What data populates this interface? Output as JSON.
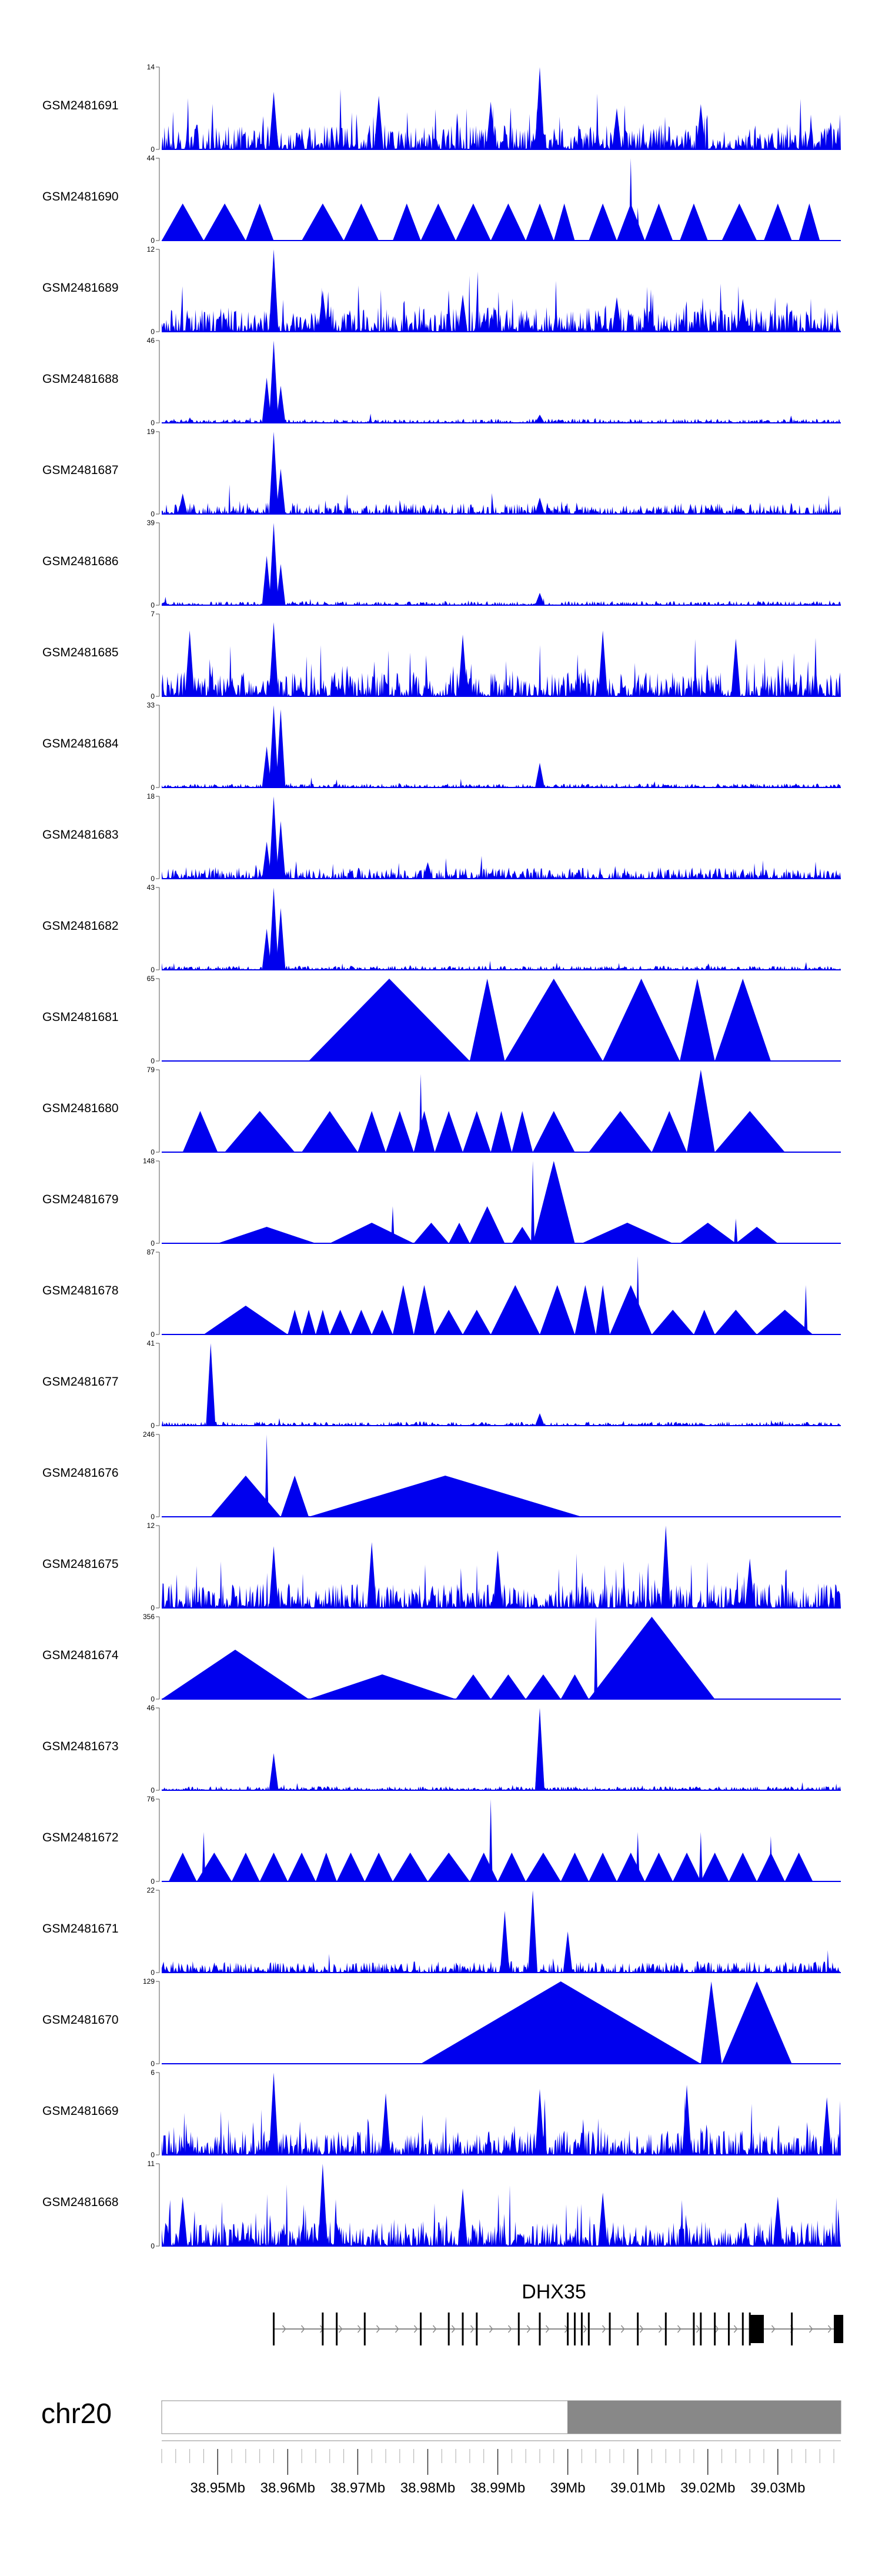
{
  "chart_data": {
    "type": "area",
    "title": "",
    "xlabel": "",
    "ylabel": "",
    "color": "#0000EE",
    "x_range_mb": [
      38.942,
      39.039
    ],
    "tracks": [
      {
        "name": "GSM2481691",
        "ymax": "14",
        "ymin": "0",
        "pattern": "dense",
        "peaks": [
          [
            38.958,
            0.7
          ],
          [
            38.973,
            0.65
          ],
          [
            38.989,
            0.58
          ],
          [
            38.996,
            1.0
          ],
          [
            39.007,
            0.5
          ],
          [
            39.019,
            0.55
          ]
        ],
        "segments": []
      },
      {
        "name": "GSM2481690",
        "ymax": "44",
        "ymin": "0",
        "pattern": "triangles",
        "peaks": [
          [
            39.009,
            1.0
          ],
          [
            39.01,
            0.4
          ]
        ],
        "segments": [
          [
            38.942,
            38.948
          ],
          [
            38.948,
            38.954
          ],
          [
            38.954,
            38.958
          ],
          [
            38.962,
            38.968
          ],
          [
            38.968,
            38.973
          ],
          [
            38.975,
            38.979
          ],
          [
            38.979,
            38.984
          ],
          [
            38.984,
            38.989
          ],
          [
            38.989,
            38.994
          ],
          [
            38.994,
            38.998
          ],
          [
            38.998,
            39.001
          ],
          [
            39.003,
            39.007
          ],
          [
            39.007,
            39.011
          ],
          [
            39.011,
            39.015
          ],
          [
            39.016,
            39.02
          ],
          [
            39.022,
            39.027
          ],
          [
            39.028,
            39.032
          ],
          [
            39.033,
            39.036
          ]
        ]
      },
      {
        "name": "GSM2481689",
        "ymax": "12",
        "ymin": "0",
        "pattern": "dense",
        "peaks": [
          [
            38.958,
            1.0
          ],
          [
            38.965,
            0.5
          ],
          [
            38.985,
            0.45
          ],
          [
            39.007,
            0.42
          ],
          [
            39.025,
            0.4
          ]
        ],
        "segments": []
      },
      {
        "name": "GSM2481688",
        "ymax": "46",
        "ymin": "0",
        "pattern": "sparse",
        "peaks": [
          [
            38.958,
            1.0
          ],
          [
            38.957,
            0.55
          ],
          [
            38.959,
            0.45
          ],
          [
            38.996,
            0.1
          ]
        ],
        "segments": []
      },
      {
        "name": "GSM2481687",
        "ymax": "19",
        "ymin": "0",
        "pattern": "medium",
        "peaks": [
          [
            38.958,
            1.0
          ],
          [
            38.959,
            0.55
          ],
          [
            38.945,
            0.25
          ],
          [
            38.996,
            0.2
          ]
        ],
        "segments": []
      },
      {
        "name": "GSM2481686",
        "ymax": "39",
        "ymin": "0",
        "pattern": "sparse",
        "peaks": [
          [
            38.958,
            1.0
          ],
          [
            38.957,
            0.6
          ],
          [
            38.959,
            0.5
          ],
          [
            38.996,
            0.15
          ]
        ],
        "segments": []
      },
      {
        "name": "GSM2481685",
        "ymax": "7",
        "ymin": "0",
        "pattern": "dense",
        "peaks": [
          [
            38.946,
            0.8
          ],
          [
            38.958,
            0.9
          ],
          [
            38.985,
            0.75
          ],
          [
            39.005,
            0.8
          ],
          [
            39.024,
            0.7
          ]
        ],
        "segments": []
      },
      {
        "name": "GSM2481684",
        "ymax": "33",
        "ymin": "0",
        "pattern": "sparse",
        "peaks": [
          [
            38.958,
            1.0
          ],
          [
            38.959,
            0.95
          ],
          [
            38.957,
            0.5
          ],
          [
            38.996,
            0.3
          ]
        ],
        "segments": []
      },
      {
        "name": "GSM2481683",
        "ymax": "18",
        "ymin": "0",
        "pattern": "medium",
        "peaks": [
          [
            38.958,
            1.0
          ],
          [
            38.959,
            0.7
          ],
          [
            38.957,
            0.45
          ],
          [
            38.98,
            0.2
          ]
        ],
        "segments": []
      },
      {
        "name": "GSM2481682",
        "ymax": "43",
        "ymin": "0",
        "pattern": "sparse",
        "peaks": [
          [
            38.958,
            1.0
          ],
          [
            38.959,
            0.75
          ],
          [
            38.957,
            0.5
          ]
        ],
        "segments": []
      },
      {
        "name": "GSM2481681",
        "ymax": "65",
        "ymin": "0",
        "pattern": "triangles",
        "peaks": [],
        "segments": [
          [
            38.963,
            38.986,
            1.0
          ],
          [
            38.986,
            38.991,
            1.0
          ],
          [
            38.991,
            39.005,
            1.0
          ],
          [
            39.005,
            39.016,
            1.0
          ],
          [
            39.016,
            39.021,
            1.0
          ],
          [
            39.021,
            39.029,
            1.0
          ]
        ]
      },
      {
        "name": "GSM2481680",
        "ymax": "79",
        "ymin": "0",
        "pattern": "triangles",
        "peaks": [
          [
            38.979,
            0.95
          ],
          [
            39.019,
            1.0
          ]
        ],
        "segments": [
          [
            38.945,
            38.95,
            0.5
          ],
          [
            38.951,
            38.961,
            0.5
          ],
          [
            38.962,
            38.97,
            0.5
          ],
          [
            38.97,
            38.974,
            0.5
          ],
          [
            38.974,
            38.978,
            0.5
          ],
          [
            38.978,
            38.981,
            0.5
          ],
          [
            38.981,
            38.985,
            0.5
          ],
          [
            38.985,
            38.989,
            0.5
          ],
          [
            38.989,
            38.992,
            0.5
          ],
          [
            38.992,
            38.995,
            0.5
          ],
          [
            38.995,
            39.001,
            0.5
          ],
          [
            39.003,
            39.012,
            0.5
          ],
          [
            39.012,
            39.017,
            0.5
          ],
          [
            39.017,
            39.021,
            1.0
          ],
          [
            39.021,
            39.031,
            0.5
          ]
        ]
      },
      {
        "name": "GSM2481679",
        "ymax": "148",
        "ymin": "0",
        "pattern": "triangles",
        "peaks": [
          [
            38.975,
            0.45
          ],
          [
            38.995,
            1.0
          ],
          [
            39.024,
            0.3
          ]
        ],
        "segments": [
          [
            38.95,
            38.964,
            0.2
          ],
          [
            38.966,
            38.978,
            0.25
          ],
          [
            38.978,
            38.983,
            0.25
          ],
          [
            38.983,
            38.986,
            0.25
          ],
          [
            38.986,
            38.991,
            0.45
          ],
          [
            38.992,
            38.995,
            0.2
          ],
          [
            38.995,
            39.001,
            1.0
          ],
          [
            39.002,
            39.015,
            0.25
          ],
          [
            39.016,
            39.024,
            0.25
          ],
          [
            39.024,
            39.03,
            0.2
          ]
        ]
      },
      {
        "name": "GSM2481678",
        "ymax": "87",
        "ymin": "0",
        "pattern": "triangles",
        "peaks": [
          [
            39.01,
            0.95
          ],
          [
            39.034,
            0.6
          ]
        ],
        "segments": [
          [
            38.948,
            38.96,
            0.35
          ],
          [
            38.96,
            38.962,
            0.3
          ],
          [
            38.962,
            38.964,
            0.3
          ],
          [
            38.964,
            38.966,
            0.3
          ],
          [
            38.966,
            38.969,
            0.3
          ],
          [
            38.969,
            38.972,
            0.3
          ],
          [
            38.972,
            38.975,
            0.3
          ],
          [
            38.975,
            38.978,
            0.6
          ],
          [
            38.978,
            38.981,
            0.6
          ],
          [
            38.981,
            38.985,
            0.3
          ],
          [
            38.985,
            38.989,
            0.3
          ],
          [
            38.989,
            38.996,
            0.6
          ],
          [
            38.996,
            39.001,
            0.6
          ],
          [
            39.001,
            39.004,
            0.6
          ],
          [
            39.004,
            39.006,
            0.6
          ],
          [
            39.006,
            39.012,
            0.6
          ],
          [
            39.012,
            39.018,
            0.3
          ],
          [
            39.018,
            39.021,
            0.3
          ],
          [
            39.021,
            39.027,
            0.3
          ],
          [
            39.027,
            39.035,
            0.3
          ]
        ]
      },
      {
        "name": "GSM2481677",
        "ymax": "41",
        "ymin": "0",
        "pattern": "sparse",
        "peaks": [
          [
            38.949,
            1.0
          ],
          [
            38.996,
            0.15
          ]
        ],
        "segments": []
      },
      {
        "name": "GSM2481676",
        "ymax": "246",
        "ymin": "0",
        "pattern": "triangles",
        "peaks": [
          [
            38.957,
            1.0
          ]
        ],
        "segments": [
          [
            38.949,
            38.959,
            0.5
          ],
          [
            38.959,
            38.963,
            0.5
          ],
          [
            38.963,
            39.002,
            0.5
          ]
        ]
      },
      {
        "name": "GSM2481675",
        "ymax": "12",
        "ymin": "0",
        "pattern": "dense",
        "peaks": [
          [
            38.958,
            0.75
          ],
          [
            38.972,
            0.8
          ],
          [
            38.99,
            0.7
          ],
          [
            39.014,
            1.0
          ],
          [
            39.026,
            0.6
          ]
        ],
        "segments": []
      },
      {
        "name": "GSM2481674",
        "ymax": "356",
        "ymin": "0",
        "pattern": "triangles",
        "peaks": [
          [
            39.004,
            1.0
          ]
        ],
        "segments": [
          [
            38.942,
            38.963,
            0.6
          ],
          [
            38.963,
            38.984,
            0.3
          ],
          [
            38.984,
            38.989,
            0.3
          ],
          [
            38.989,
            38.994,
            0.3
          ],
          [
            38.994,
            38.999,
            0.3
          ],
          [
            38.999,
            39.003,
            0.3
          ],
          [
            39.003,
            39.021,
            1.0
          ]
        ]
      },
      {
        "name": "GSM2481673",
        "ymax": "46",
        "ymin": "0",
        "pattern": "sparse",
        "peaks": [
          [
            38.958,
            0.45
          ],
          [
            38.996,
            1.0
          ],
          [
            38.996,
            0.8
          ]
        ],
        "segments": []
      },
      {
        "name": "GSM2481672",
        "ymax": "76",
        "ymin": "0",
        "pattern": "triangles",
        "peaks": [
          [
            38.948,
            0.6
          ],
          [
            38.989,
            1.0
          ],
          [
            39.01,
            0.6
          ],
          [
            39.019,
            0.6
          ],
          [
            39.029,
            0.55
          ]
        ],
        "segments": [
          [
            38.943,
            38.947,
            0.35
          ],
          [
            38.947,
            38.952,
            0.35
          ],
          [
            38.952,
            38.956,
            0.35
          ],
          [
            38.956,
            38.96,
            0.35
          ],
          [
            38.96,
            38.964,
            0.35
          ],
          [
            38.964,
            38.967,
            0.35
          ],
          [
            38.967,
            38.971,
            0.35
          ],
          [
            38.971,
            38.975,
            0.35
          ],
          [
            38.975,
            38.98,
            0.35
          ],
          [
            38.98,
            38.986,
            0.35
          ],
          [
            38.986,
            38.99,
            0.35
          ],
          [
            38.99,
            38.994,
            0.35
          ],
          [
            38.994,
            38.999,
            0.35
          ],
          [
            38.999,
            39.003,
            0.35
          ],
          [
            39.003,
            39.007,
            0.35
          ],
          [
            39.007,
            39.011,
            0.35
          ],
          [
            39.011,
            39.015,
            0.35
          ],
          [
            39.015,
            39.019,
            0.35
          ],
          [
            39.019,
            39.023,
            0.35
          ],
          [
            39.023,
            39.027,
            0.35
          ],
          [
            39.027,
            39.031,
            0.35
          ],
          [
            39.031,
            39.035,
            0.35
          ]
        ]
      },
      {
        "name": "GSM2481671",
        "ymax": "22",
        "ymin": "0",
        "pattern": "medium",
        "peaks": [
          [
            38.991,
            0.75
          ],
          [
            38.995,
            1.0
          ],
          [
            39.0,
            0.5
          ]
        ],
        "segments": []
      },
      {
        "name": "GSM2481670",
        "ymax": "129",
        "ymin": "0",
        "pattern": "triangles",
        "peaks": [],
        "segments": [
          [
            38.979,
            39.019,
            1.0
          ],
          [
            39.019,
            39.022,
            1.0
          ],
          [
            39.022,
            39.032,
            1.0
          ]
        ]
      },
      {
        "name": "GSM2481669",
        "ymax": "6",
        "ymin": "0",
        "pattern": "dense",
        "peaks": [
          [
            38.958,
            1.0
          ],
          [
            38.974,
            0.75
          ],
          [
            38.996,
            0.8
          ],
          [
            39.017,
            0.85
          ],
          [
            39.037,
            0.7
          ]
        ],
        "segments": []
      },
      {
        "name": "GSM2481668",
        "ymax": "11",
        "ymin": "0",
        "pattern": "dense",
        "peaks": [
          [
            38.945,
            0.6
          ],
          [
            38.965,
            1.0
          ],
          [
            38.985,
            0.7
          ],
          [
            39.005,
            0.65
          ],
          [
            39.03,
            0.6
          ]
        ],
        "segments": []
      }
    ],
    "gene": {
      "name": "DHX35",
      "start_mb": 38.958,
      "end_mb": 39.039,
      "strand": "+",
      "exons_mb": [
        38.958,
        38.965,
        38.967,
        38.971,
        38.979,
        38.983,
        38.985,
        38.987,
        38.993,
        38.996,
        39.0,
        39.001,
        39.002,
        39.003,
        39.006,
        39.01,
        39.014,
        39.018,
        39.019,
        39.021,
        39.023,
        39.025,
        39.026,
        39.032
      ],
      "large_exons_mb": [
        [
          39.026,
          39.028
        ],
        [
          39.038,
          39.039
        ]
      ]
    },
    "chromosome": {
      "name": "chr20",
      "band_boundary_mb": 39.0,
      "band_colors": [
        "#ffffff",
        "#888888"
      ]
    },
    "x_ticks_mb": [
      38.95,
      38.96,
      38.97,
      38.98,
      38.99,
      39.0,
      39.01,
      39.02,
      39.03
    ],
    "x_tick_labels": [
      "38.95Mb",
      "38.96Mb",
      "38.97Mb",
      "38.98Mb",
      "38.99Mb",
      "39Mb",
      "39.01Mb",
      "39.02Mb",
      "39.03Mb"
    ]
  }
}
